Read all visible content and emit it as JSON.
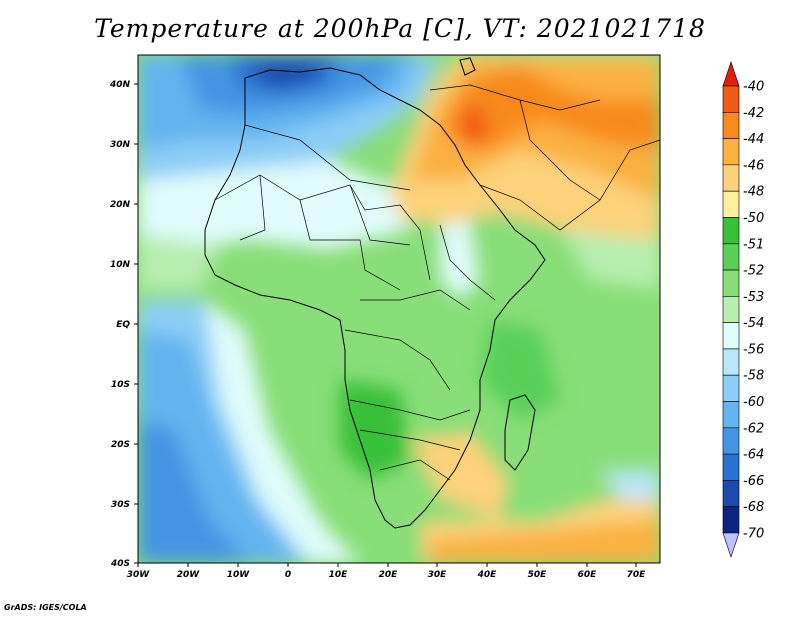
{
  "title": "Temperature at 200hPa [C], VT: 2021021718",
  "credit": "GrADS: IGES/COLA",
  "map": {
    "projection": "lat-lon",
    "lon_range": [
      -30,
      75
    ],
    "lat_range": [
      -40,
      45
    ],
    "lat_labels": [
      "40N",
      "30N",
      "20N",
      "10N",
      "EQ",
      "10S",
      "20S",
      "30S",
      "40S"
    ],
    "lon_labels": [
      "30W",
      "20W",
      "10W",
      "0",
      "10E",
      "20E",
      "30E",
      "40E",
      "50E",
      "60E",
      "70E"
    ],
    "coastlines": "black",
    "country_borders": "black"
  },
  "colorbar": {
    "orientation": "vertical",
    "labels": [
      "-40",
      "-42",
      "-44",
      "-46",
      "-48",
      "-50",
      "-51",
      "-52",
      "-53",
      "-54",
      "-56",
      "-58",
      "-60",
      "-62",
      "-64",
      "-66",
      "-68",
      "-70"
    ],
    "colors": [
      "#e0200a",
      "#f05a18",
      "#f88a1e",
      "#fbb040",
      "#fdd27a",
      "#fff0a0",
      "#38c038",
      "#58d058",
      "#88de78",
      "#b8eeb0",
      "#e0fcfc",
      "#b8e6fa",
      "#8ccef6",
      "#64b4f0",
      "#4494e4",
      "#2a72d2",
      "#1a4aae",
      "#0d2482",
      "#c0c0ff"
    ]
  }
}
